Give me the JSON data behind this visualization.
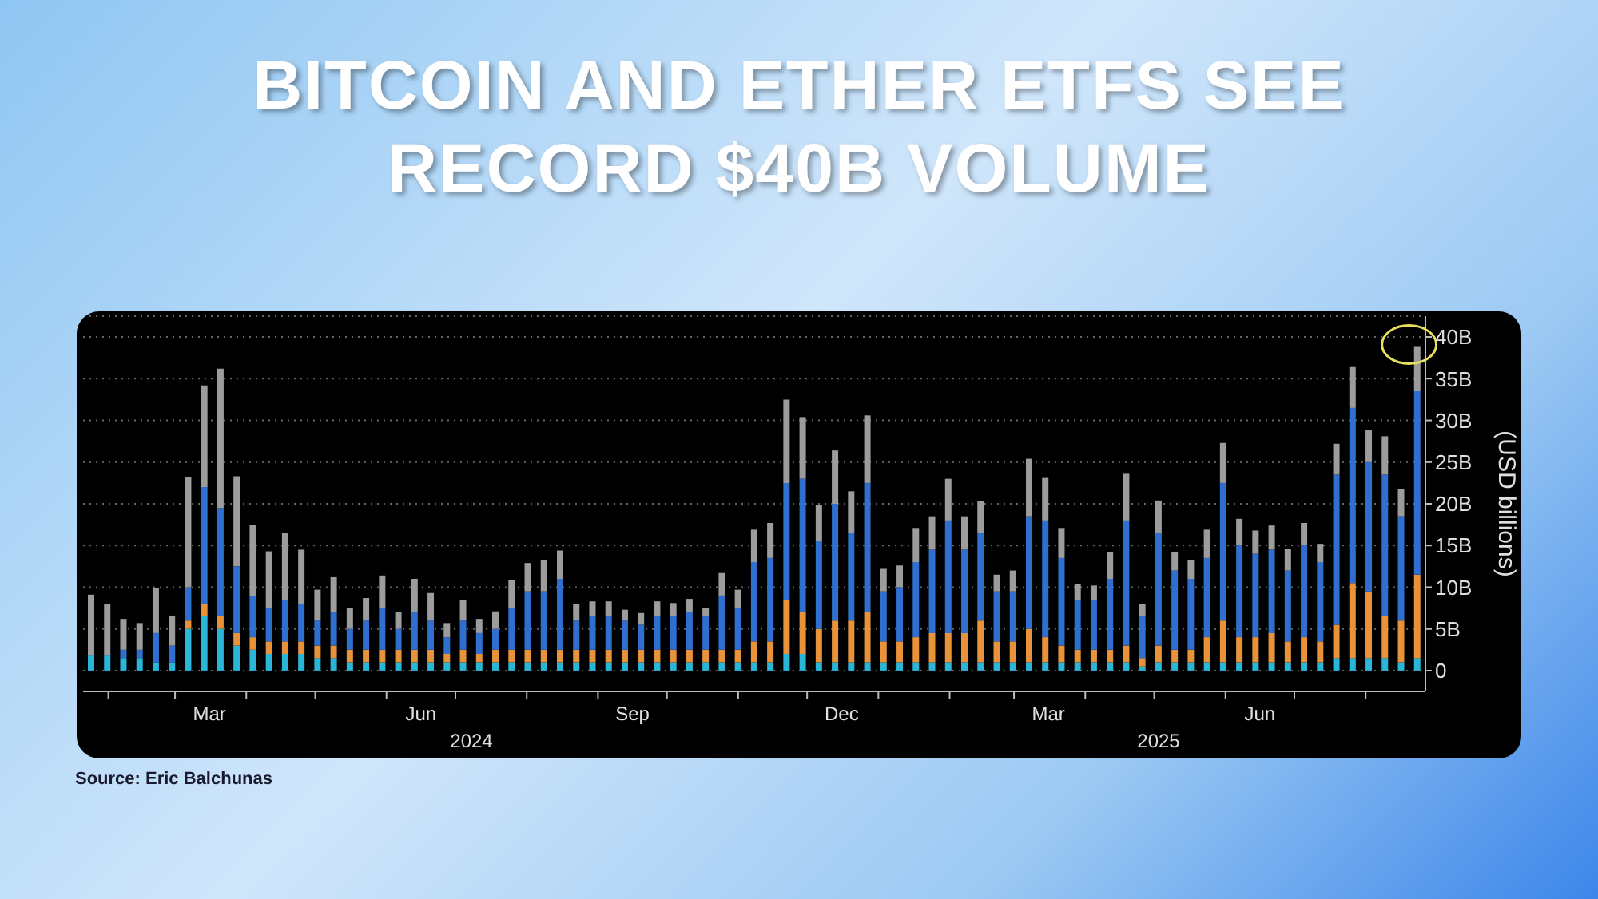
{
  "chart_data": {
    "type": "bar",
    "stacked": true,
    "title": "BITCOIN AND ETHER ETFS SEE RECORD $40B VOLUME",
    "ylabel": "(USD billions)",
    "annotations": [
      "2024",
      "2025",
      "Source: Eric Balchunas"
    ],
    "x": [
      "2024-01-26",
      "2024-02-02",
      "2024-02-09",
      "2024-02-16",
      "2024-02-23",
      "2024-03-01",
      "2024-03-08",
      "2024-03-15",
      "2024-03-22",
      "2024-03-29",
      "2024-04-05",
      "2024-04-12",
      "2024-04-19",
      "2024-04-26",
      "2024-05-03",
      "2024-05-10",
      "2024-05-17",
      "2024-05-24",
      "2024-05-31",
      "2024-06-07",
      "2024-06-14",
      "2024-06-21",
      "2024-06-28",
      "2024-07-05",
      "2024-07-12",
      "2024-07-19",
      "2024-07-26",
      "2024-08-02",
      "2024-08-09",
      "2024-08-16",
      "2024-08-23",
      "2024-08-30",
      "2024-09-06",
      "2024-09-13",
      "2024-09-20",
      "2024-09-27",
      "2024-10-04",
      "2024-10-11",
      "2024-10-18",
      "2024-10-25",
      "2024-11-01",
      "2024-11-08",
      "2024-11-15",
      "2024-11-22",
      "2024-11-29",
      "2024-12-06",
      "2024-12-13",
      "2024-12-20",
      "2024-12-27",
      "2025-01-03",
      "2025-01-10",
      "2025-01-17",
      "2025-01-24",
      "2025-01-31",
      "2025-02-07",
      "2025-02-14",
      "2025-02-21",
      "2025-02-28",
      "2025-03-07",
      "2025-03-14",
      "2025-03-21",
      "2025-03-28",
      "2025-04-04",
      "2025-04-11",
      "2025-04-18",
      "2025-04-25",
      "2025-05-02",
      "2025-05-09",
      "2025-05-16",
      "2025-05-23",
      "2025-05-30",
      "2025-06-06",
      "2025-06-13",
      "2025-06-20",
      "2025-06-27",
      "2025-07-04",
      "2025-07-11",
      "2025-07-18",
      "2025-07-25",
      "2025-08-01",
      "2025-08-08",
      "2025-08-15",
      "2025-08-22"
    ],
    "xlim": [
      "2024-01-21",
      "2025-08-27"
    ],
    "xticks": [
      {
        "value": "2024-02-01",
        "label": null
      },
      {
        "value": "2024-03-01",
        "label": null
      },
      {
        "value": "2024-03-16",
        "label": "Mar"
      },
      {
        "value": "2024-04-01",
        "label": null
      },
      {
        "value": "2024-05-01",
        "label": null
      },
      {
        "value": "2024-06-01",
        "label": null
      },
      {
        "value": "2024-06-16",
        "label": "Jun"
      },
      {
        "value": "2024-07-01",
        "label": null
      },
      {
        "value": "2024-08-01",
        "label": null
      },
      {
        "value": "2024-09-01",
        "label": null
      },
      {
        "value": "2024-09-16",
        "label": "Sep"
      },
      {
        "value": "2024-10-01",
        "label": null
      },
      {
        "value": "2024-11-01",
        "label": null
      },
      {
        "value": "2024-12-01",
        "label": null
      },
      {
        "value": "2024-12-16",
        "label": "Dec"
      },
      {
        "value": "2025-01-01",
        "label": null
      },
      {
        "value": "2025-02-01",
        "label": null
      },
      {
        "value": "2025-03-01",
        "label": null
      },
      {
        "value": "2025-03-16",
        "label": "Mar"
      },
      {
        "value": "2025-04-01",
        "label": null
      },
      {
        "value": "2025-05-01",
        "label": null
      },
      {
        "value": "2025-06-01",
        "label": null
      },
      {
        "value": "2025-06-16",
        "label": "Jun"
      },
      {
        "value": "2025-07-01",
        "label": null
      },
      {
        "value": "2025-08-01",
        "label": null
      }
    ],
    "ylim": [
      -2.5,
      42.5
    ],
    "yticks": [
      0,
      {
        "value": 5,
        "label": "5B"
      },
      {
        "value": 10,
        "label": "10B"
      },
      {
        "value": 15,
        "label": "15B"
      },
      {
        "value": 20,
        "label": "20B"
      },
      {
        "value": 25,
        "label": "25B"
      },
      {
        "value": 30,
        "label": "30B"
      },
      {
        "value": 35,
        "label": "35B"
      },
      {
        "value": 40,
        "label": "40B"
      }
    ],
    "grid": "y",
    "series": [
      {
        "color": "#2bb5d8",
        "values": [
          1.8,
          1.8,
          1.5,
          1.5,
          1.0,
          1.0,
          5.0,
          6.5,
          5.0,
          3.0,
          2.5,
          2.0,
          2.0,
          2.0,
          1.5,
          1.5,
          1.0,
          1.0,
          1.0,
          1.0,
          1.0,
          1.0,
          1.0,
          1.0,
          1.0,
          1.0,
          1.0,
          1.0,
          1.0,
          1.0,
          1.0,
          1.0,
          1.0,
          1.0,
          1.0,
          1.0,
          1.0,
          1.0,
          1.0,
          1.0,
          1.0,
          1.0,
          1.0,
          2.0,
          2.0,
          1.0,
          1.0,
          1.0,
          1.0,
          1.0,
          1.0,
          1.0,
          1.0,
          1.0,
          1.0,
          1.0,
          1.0,
          1.0,
          1.0,
          1.0,
          1.0,
          1.0,
          1.0,
          1.0,
          1.0,
          0.5,
          1.0,
          1.0,
          1.0,
          1.0,
          1.0,
          1.0,
          1.0,
          1.0,
          1.0,
          1.0,
          1.0,
          1.5,
          1.5,
          1.5,
          1.5,
          1.0,
          1.5
        ]
      },
      {
        "color": "#e8923a",
        "values": [
          0,
          0,
          0,
          0,
          0,
          0,
          1.0,
          1.5,
          1.5,
          1.5,
          1.5,
          1.5,
          1.5,
          1.5,
          1.5,
          1.5,
          1.5,
          1.5,
          1.5,
          1.5,
          1.5,
          1.5,
          1.0,
          1.5,
          1.0,
          1.5,
          1.5,
          1.5,
          1.5,
          1.5,
          1.5,
          1.5,
          1.5,
          1.5,
          1.5,
          1.5,
          1.5,
          1.5,
          1.5,
          1.5,
          1.5,
          2.5,
          2.5,
          6.5,
          5.0,
          4.0,
          5.0,
          5.0,
          6.0,
          2.5,
          2.5,
          3.0,
          3.5,
          3.5,
          3.5,
          5.0,
          2.5,
          2.5,
          4.0,
          3.0,
          2.0,
          1.5,
          1.5,
          1.5,
          2.0,
          1.0,
          2.0,
          1.5,
          1.5,
          3.0,
          5.0,
          3.0,
          3.0,
          3.5,
          2.5,
          3.0,
          2.5,
          4.0,
          9.0,
          8.0,
          5.0,
          5.0,
          10.0
        ]
      },
      {
        "color": "#2f6fd0",
        "values": [
          0,
          0,
          1.0,
          1.0,
          3.5,
          2.0,
          4.0,
          14.0,
          13.0,
          8.0,
          5.0,
          4.0,
          5.0,
          4.5,
          3.0,
          4.0,
          2.5,
          3.5,
          5.0,
          2.5,
          4.5,
          3.5,
          2.0,
          3.5,
          2.5,
          2.5,
          5.0,
          7.0,
          7.0,
          8.5,
          3.5,
          4.0,
          4.0,
          3.5,
          3.0,
          4.0,
          4.0,
          4.5,
          4.0,
          6.5,
          5.0,
          9.5,
          10.0,
          14.0,
          16.0,
          10.5,
          14.0,
          10.5,
          15.5,
          6.0,
          6.5,
          9.0,
          10.0,
          13.5,
          10.0,
          10.5,
          6.0,
          6.0,
          13.5,
          14.0,
          10.5,
          6.0,
          6.0,
          8.5,
          15.0,
          5.0,
          13.5,
          9.5,
          8.5,
          9.5,
          16.5,
          11.0,
          10.0,
          10.0,
          8.5,
          11.0,
          9.5,
          18.0,
          21.0,
          15.5,
          17.0,
          12.5,
          22.0
        ]
      },
      {
        "color": "#9c9c9c",
        "values": [
          7.3,
          6.2,
          3.7,
          3.2,
          5.4,
          3.6,
          13.2,
          12.2,
          16.7,
          10.8,
          8.5,
          6.8,
          8.0,
          6.5,
          3.7,
          4.2,
          2.5,
          2.7,
          3.9,
          2.0,
          4.0,
          3.3,
          1.7,
          2.5,
          1.7,
          2.1,
          3.4,
          3.4,
          3.7,
          3.4,
          2.0,
          1.8,
          1.8,
          1.3,
          1.4,
          1.8,
          1.6,
          1.6,
          1.0,
          2.7,
          2.2,
          3.9,
          4.2,
          10.0,
          7.4,
          4.4,
          6.4,
          5.0,
          8.1,
          2.7,
          2.6,
          4.1,
          4.0,
          5.0,
          4.0,
          3.8,
          2.0,
          2.5,
          6.9,
          5.1,
          3.6,
          1.9,
          1.7,
          3.2,
          5.6,
          1.5,
          3.9,
          2.2,
          2.2,
          3.4,
          4.8,
          3.2,
          2.8,
          2.9,
          2.6,
          2.7,
          2.2,
          3.7,
          4.9,
          3.9,
          4.6,
          3.3,
          5.4
        ]
      }
    ]
  }
}
